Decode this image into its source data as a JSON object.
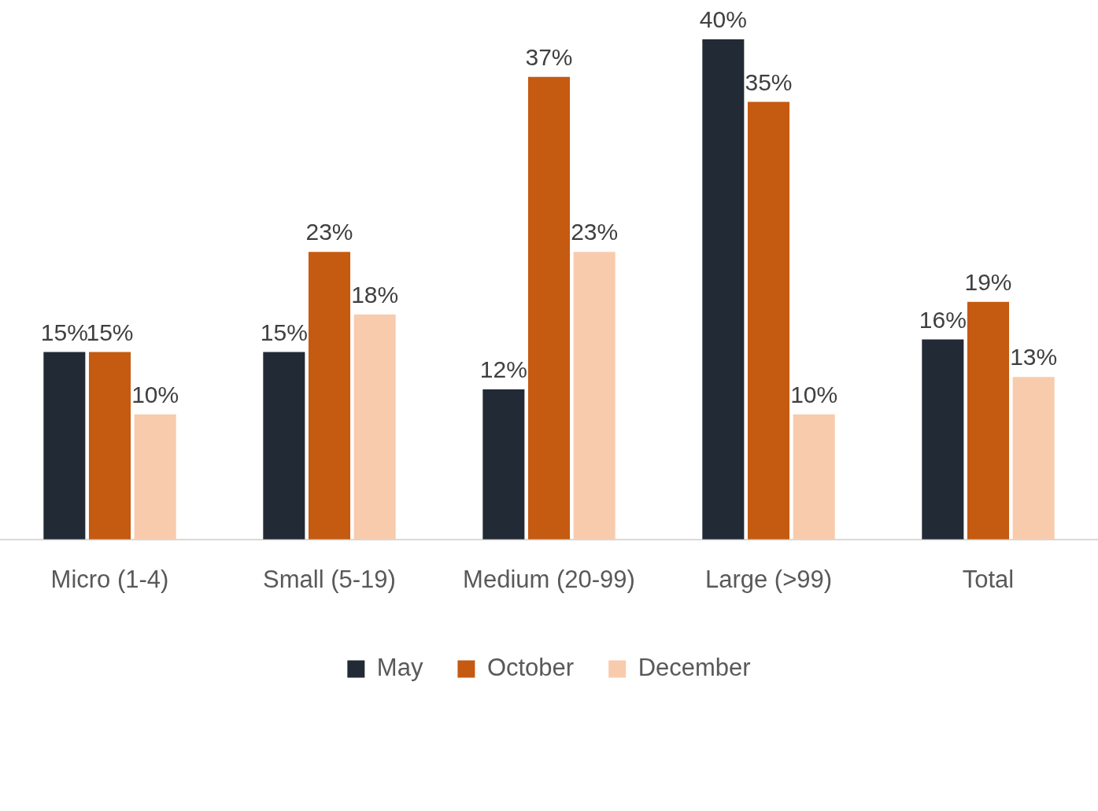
{
  "chart_data": {
    "type": "bar",
    "categories": [
      "Micro (1-4)",
      "Small (5-19)",
      "Medium (20-99)",
      "Large (>99)",
      "Total"
    ],
    "series": [
      {
        "name": "May",
        "color": "#222a35",
        "values": [
          15,
          15,
          12,
          40,
          16
        ],
        "value_labels": [
          "15%",
          "15%",
          "12%",
          "40%",
          "16%"
        ]
      },
      {
        "name": "October",
        "color": "#c55a11",
        "values": [
          15,
          23,
          37,
          35,
          19
        ],
        "value_labels": [
          "15%",
          "23%",
          "37%",
          "35%",
          "19%"
        ]
      },
      {
        "name": "December",
        "color": "#f8cbad",
        "values": [
          10,
          18,
          23,
          10,
          13
        ],
        "value_labels": [
          "10%",
          "18%",
          "23%",
          "10%",
          "13%"
        ]
      }
    ],
    "grid": false,
    "legend": "bottom",
    "tick_labels": "x"
  }
}
